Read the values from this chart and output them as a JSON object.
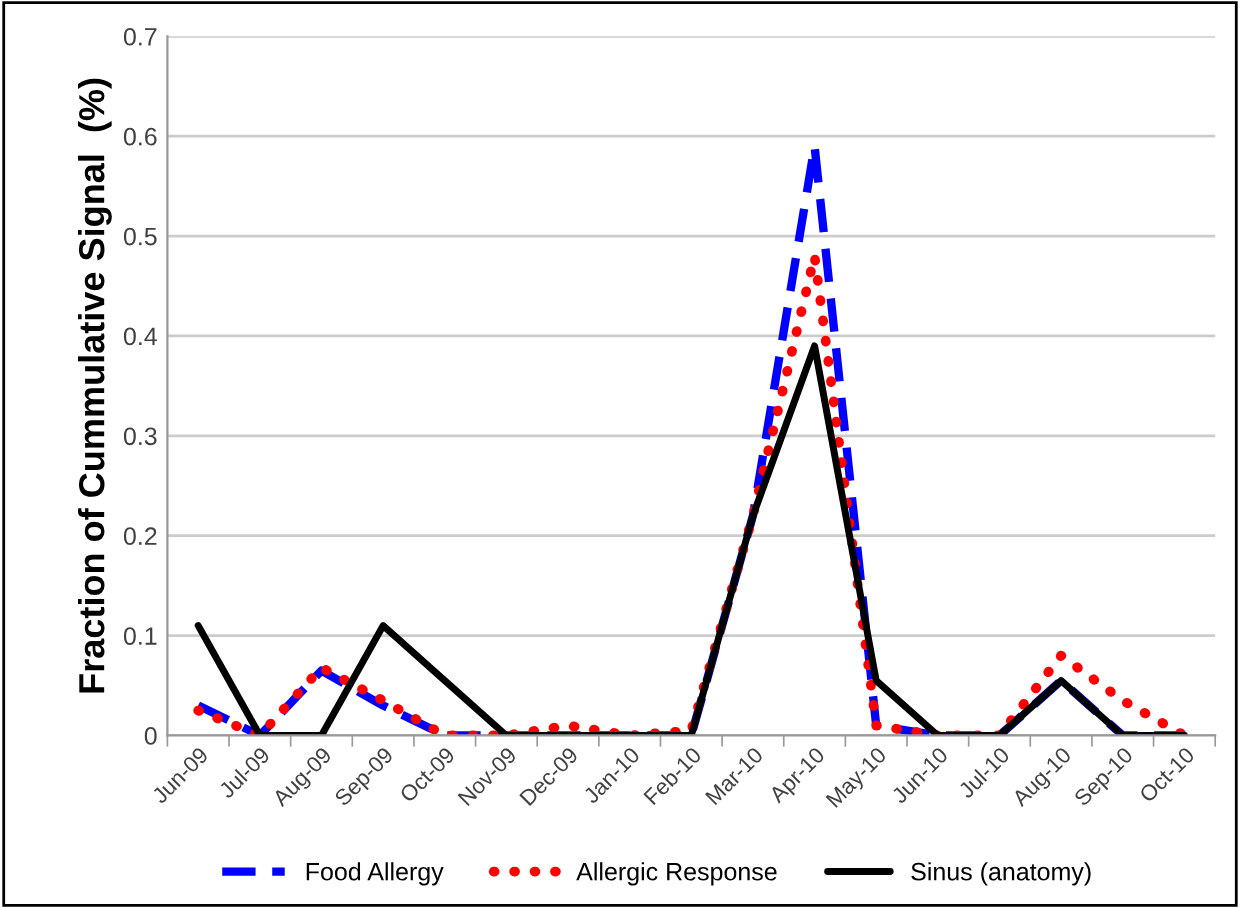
{
  "chart_data": {
    "type": "line",
    "ylabel": "Fraction of Cummulative Signal  (%)",
    "categories": [
      "Jun-09",
      "Jul-09",
      "Aug-09",
      "Sep-09",
      "Oct-09",
      "Nov-09",
      "Dec-09",
      "Jan-10",
      "Feb-10",
      "Mar-10",
      "Apr-10",
      "May-10",
      "Jun-10",
      "Jul-10",
      "Aug-10",
      "Sep-10",
      "Oct-10"
    ],
    "series": [
      {
        "name": "Food Allergy",
        "color": "#0000ff",
        "line_style": "dashed",
        "values": [
          0.03,
          0,
          0.065,
          0.03,
          0,
          0,
          0,
          0,
          0,
          0.22,
          0.59,
          0.01,
          0,
          0,
          0.055,
          0,
          0
        ]
      },
      {
        "name": "Allergic Response",
        "color": "#ff0000",
        "line_style": "dotted",
        "values": [
          0.025,
          0,
          0.068,
          0.035,
          0,
          0,
          0.01,
          0,
          0.005,
          0.22,
          0.48,
          0.01,
          0,
          0,
          0.08,
          0.035,
          0
        ]
      },
      {
        "name": "Sinus (anatomy)",
        "color": "#000000",
        "line_style": "solid",
        "values": [
          0.11,
          0,
          0,
          0.11,
          0.055,
          0,
          0,
          0,
          0,
          0.22,
          0.39,
          0.055,
          0,
          0,
          0.055,
          0,
          0
        ]
      }
    ],
    "ylim": [
      0,
      0.7
    ],
    "yticks": [
      0,
      0.1,
      0.2,
      0.3,
      0.4,
      0.5,
      0.6,
      0.7
    ],
    "grid": "y",
    "legend": "bottom"
  }
}
